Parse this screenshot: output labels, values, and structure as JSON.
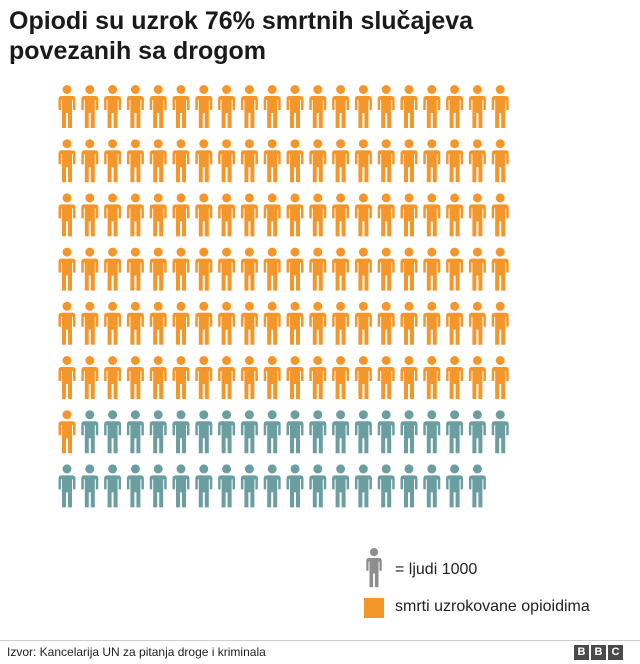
{
  "title": {
    "line1": "Opiodi su uzrok 76% smrtnih slučajeva",
    "line2": "povezanih sa drogom"
  },
  "chart_data": {
    "type": "pictogram",
    "total_icons": 159,
    "highlighted_icons": 121,
    "icons_per_row": 20,
    "unit": "= ljudi 1000",
    "series": [
      {
        "name": "smrti uzrokovane opioidima",
        "count": 121
      },
      {
        "count": 38
      }
    ]
  },
  "legend": {
    "unit_label": "= ljudi 1000",
    "series_label": "smrti uzrokovane opioidima"
  },
  "colors": {
    "highlight": "#f5962a",
    "other": "#6b9ea1",
    "legend_icon": "#8e8e8e"
  },
  "footer": {
    "source": "Izvor: Kancelarija UN za pitanja droge i kriminala",
    "logo_letters": [
      "B",
      "B",
      "C"
    ]
  }
}
